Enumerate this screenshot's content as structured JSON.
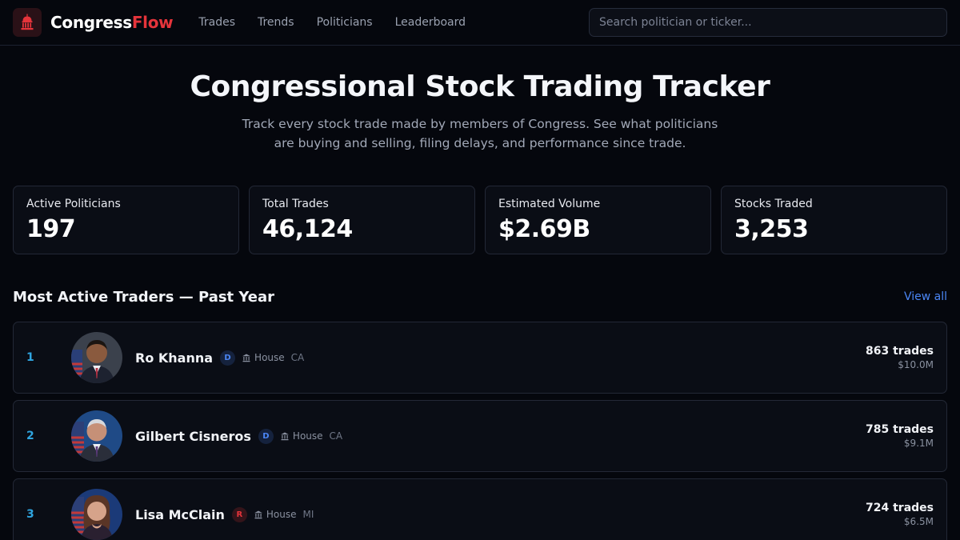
{
  "brand": {
    "name_main": "Congress",
    "name_accent": "Flow",
    "logo_icon": "capitol-building-icon",
    "accent_color": "#e5343b"
  },
  "nav": {
    "items": [
      "Trades",
      "Trends",
      "Politicians",
      "Leaderboard"
    ]
  },
  "search": {
    "placeholder": "Search politician or ticker...",
    "value": ""
  },
  "hero": {
    "title": "Congressional Stock Trading Tracker",
    "subtitle": "Track every stock trade made by members of Congress. See what politicians are buying and selling, filing delays, and performance since trade."
  },
  "stats": [
    {
      "label": "Active Politicians",
      "value": "197"
    },
    {
      "label": "Total Trades",
      "value": "46,124"
    },
    {
      "label": "Estimated Volume",
      "value": "$2.69B"
    },
    {
      "label": "Stocks Traded",
      "value": "3,253"
    }
  ],
  "traders": {
    "title": "Most Active Traders — Past Year",
    "view_all": "View all",
    "rows": [
      {
        "rank": "1",
        "name": "Ro Khanna",
        "party": "D",
        "chamber": "House",
        "state": "CA",
        "trades": "863 trades",
        "volume": "$10.0M",
        "party_color": "#4b86f5"
      },
      {
        "rank": "2",
        "name": "Gilbert Cisneros",
        "party": "D",
        "chamber": "House",
        "state": "CA",
        "trades": "785 trades",
        "volume": "$9.1M",
        "party_color": "#4b86f5"
      },
      {
        "rank": "3",
        "name": "Lisa McClain",
        "party": "R",
        "chamber": "House",
        "state": "MI",
        "trades": "724 trades",
        "volume": "$6.5M",
        "party_color": "#e5343b"
      }
    ]
  }
}
